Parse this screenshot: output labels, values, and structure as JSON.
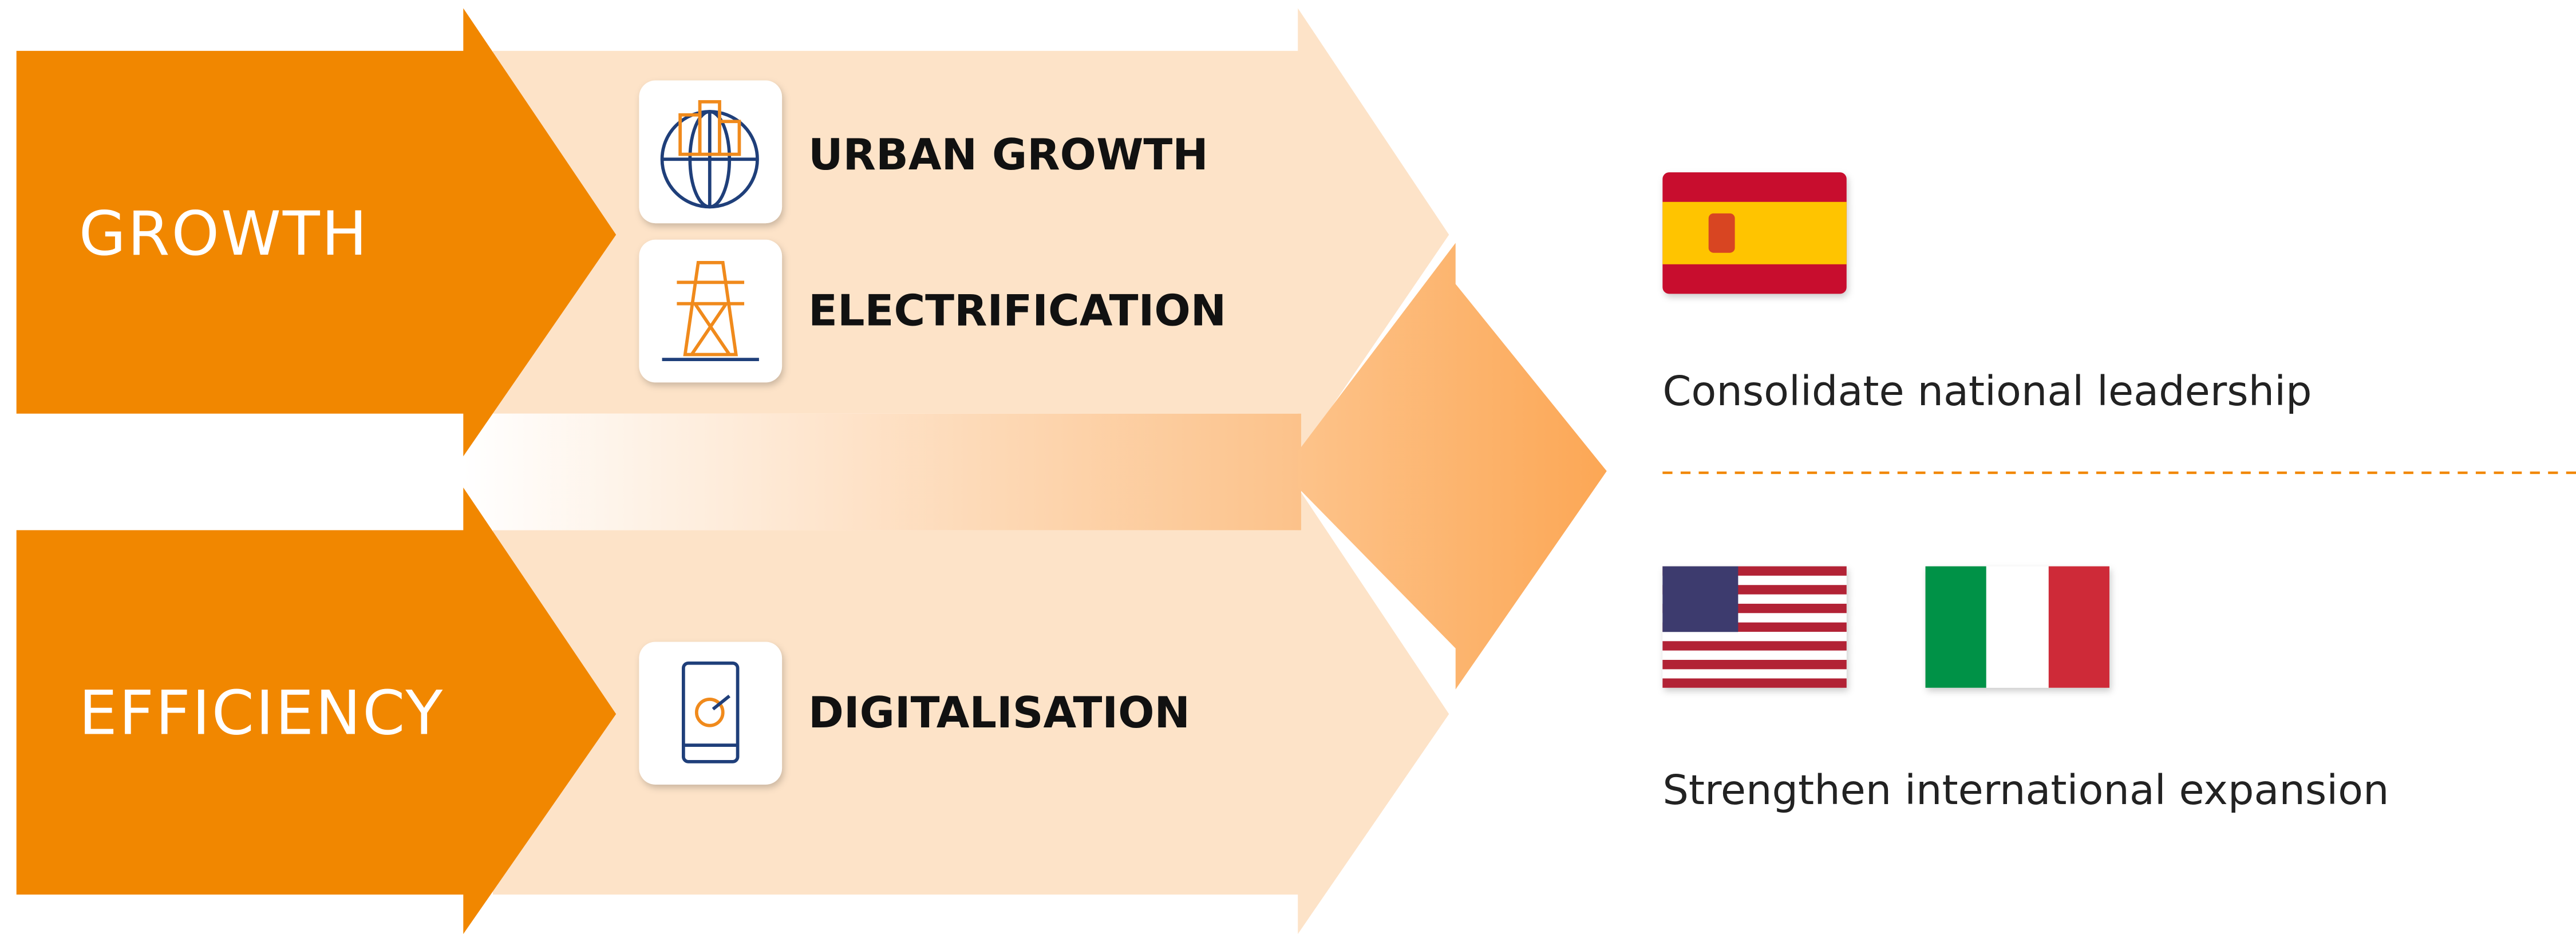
{
  "pillars": [
    {
      "label": "GROWTH",
      "drivers": [
        "URBAN GROWTH",
        "ELECTRIFICATION"
      ]
    },
    {
      "label": "EFFICIENCY",
      "drivers": [
        "DIGITALISATION"
      ]
    }
  ],
  "goals": [
    "Consolidate national leadership",
    "Strengthen international expansion"
  ]
}
